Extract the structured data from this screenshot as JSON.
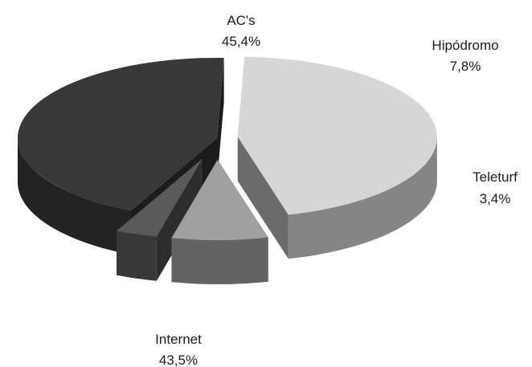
{
  "chart_data": {
    "type": "pie",
    "style": "3d-exploded",
    "slices": [
      {
        "label": "AC's",
        "value_label": "45,4%",
        "value": 45.4,
        "color": "#d6d6d6"
      },
      {
        "label": "Hipódromo",
        "value_label": "7,8%",
        "value": 7.8,
        "color": "#a0a0a0"
      },
      {
        "label": "Teleturf",
        "value_label": "3,4%",
        "value": 3.4,
        "color": "#5a5a5a"
      },
      {
        "label": "Internet",
        "value_label": "43,5%",
        "value": 43.5,
        "color": "#383838"
      }
    ],
    "legend": "none"
  }
}
